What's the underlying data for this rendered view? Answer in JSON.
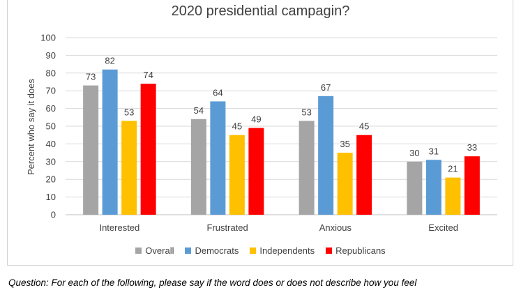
{
  "caption": "Question:  For each of the following, please say if the word does or does not describe how you feel",
  "chart_data": {
    "type": "bar",
    "title": "2020 presidential campagin?",
    "xlabel": "",
    "ylabel": "Percent who say it does",
    "ylim": [
      0,
      100
    ],
    "ytick_step": 10,
    "grid": true,
    "legend_position": "bottom",
    "categories": [
      "Interested",
      "Frustrated",
      "Anxious",
      "Excited"
    ],
    "series": [
      {
        "name": "Overall",
        "color": "#a5a5a5",
        "values": [
          73,
          54,
          53,
          30
        ]
      },
      {
        "name": "Democrats",
        "color": "#5b9bd5",
        "values": [
          82,
          64,
          67,
          31
        ]
      },
      {
        "name": "Independents",
        "color": "#ffc000",
        "values": [
          53,
          45,
          35,
          21
        ]
      },
      {
        "name": "Republicans",
        "color": "#ff0000",
        "values": [
          74,
          49,
          45,
          33
        ]
      }
    ]
  }
}
